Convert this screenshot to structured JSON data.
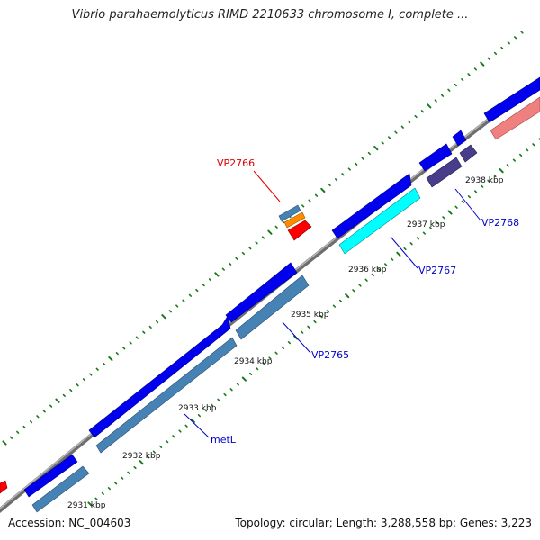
{
  "map": {
    "title": "Vibrio parahaemolyticus RIMD 2210633 chromosome I, complete ...",
    "accession": "Accession: NC_004603",
    "summary": "Topology: circular; Length: 3,288,558 bp; Genes: 3,223"
  },
  "ticks": {
    "labels": [
      "2931 kbp",
      "2932 kbp",
      "2933 kbp",
      "2934 kbp",
      "2935 kbp",
      "2936 kbp",
      "2937 kbp",
      "2938 kbp"
    ]
  },
  "genes": {
    "labels": [
      {
        "text": "metL",
        "color": "#0000cc"
      },
      {
        "text": "VP2765",
        "color": "#0000cc"
      },
      {
        "text": "VP2767",
        "color": "#0000cc"
      },
      {
        "text": "VP2768",
        "color": "#0000cc"
      },
      {
        "text": "VP2766",
        "color": "#dd0000"
      }
    ]
  },
  "colors": {
    "backbone": "#888888",
    "cds": "#0000ee",
    "gene_steelblue": "#4682b4",
    "gene_cyan": "#00ffff",
    "gene_darkslate": "#483d8b",
    "gene_salmon": "#f08080",
    "gene_red": "#ff0000",
    "gene_orange": "#ff8c00",
    "tick": "#1a7a1a"
  }
}
